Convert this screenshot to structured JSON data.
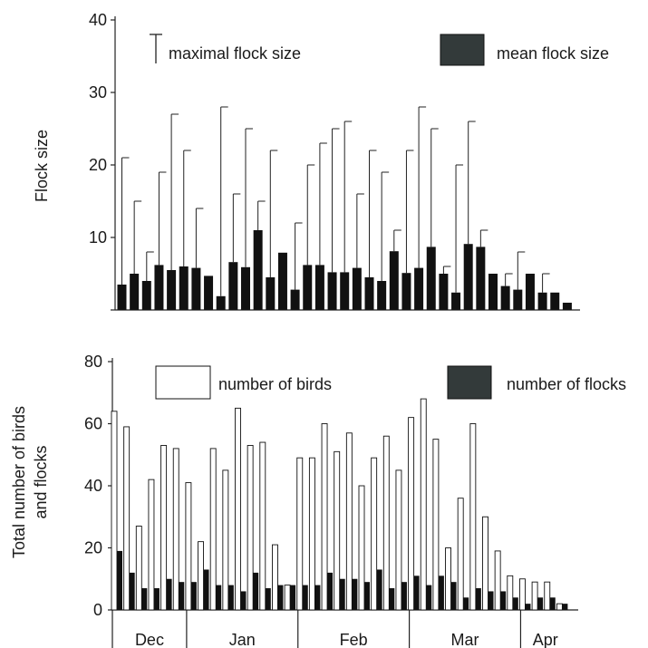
{
  "colors": {
    "mean_bar": "#111111",
    "flocks_bar": "#111111",
    "legend_dark": "#333a3a",
    "birds_bar_fill": "#ffffff",
    "axis": "#222222"
  },
  "chart_data": [
    {
      "type": "bar",
      "ylabel": "Flock size",
      "ylim": [
        0,
        40
      ],
      "yticks": [
        0,
        10,
        20,
        30,
        40
      ],
      "ytick_labels": [
        "",
        "10",
        "20",
        "30",
        "40"
      ],
      "legend": {
        "placement": "top",
        "entries": [
          "maximal flock size",
          "mean flock size"
        ]
      },
      "series": [
        {
          "name": "mean flock size",
          "values": [
            3.5,
            5,
            4,
            6.2,
            5.5,
            6,
            5.8,
            4.7,
            1.9,
            6.6,
            5.9,
            11,
            4.5,
            7.9,
            2.8,
            6.2,
            6.2,
            5.2,
            5.2,
            5.8,
            4.5,
            4,
            8.1,
            5.1,
            5.8,
            8.7,
            5,
            2.4,
            9.1,
            8.7,
            5,
            3.3,
            2.8,
            5,
            2.4,
            2.4,
            1
          ]
        },
        {
          "name": "maximal flock size",
          "values": [
            21,
            15,
            8,
            19,
            27,
            22,
            14,
            4,
            28,
            16,
            25,
            15,
            22,
            7,
            12,
            20,
            23,
            25,
            26,
            16,
            22,
            19,
            11,
            22,
            28,
            25,
            6,
            20,
            26,
            11,
            5,
            5,
            8,
            5,
            5,
            null,
            null
          ]
        }
      ]
    },
    {
      "type": "bar",
      "ylabel": "Total number of birds and flocks",
      "ylabel_lines": [
        "Total number of birds",
        "and flocks"
      ],
      "ylim": [
        0,
        80
      ],
      "yticks": [
        0,
        20,
        40,
        60,
        80
      ],
      "ytick_labels": [
        "0",
        "20",
        "40",
        "60",
        "80"
      ],
      "legend": {
        "placement": "top",
        "entries": [
          "number of birds",
          "number of flocks"
        ]
      },
      "months": [
        {
          "label": "Dec",
          "start": 0,
          "end": 6
        },
        {
          "label": "Jan",
          "start": 6,
          "end": 15
        },
        {
          "label": "Feb",
          "start": 15,
          "end": 24
        },
        {
          "label": "Mar",
          "start": 24,
          "end": 33
        },
        {
          "label": "Apr",
          "start": 33,
          "end": 37
        }
      ],
      "series": [
        {
          "name": "number of birds",
          "values": [
            64,
            59,
            27,
            42,
            53,
            52,
            41,
            22,
            52,
            45,
            65,
            53,
            54,
            21,
            8,
            49,
            49,
            60,
            51,
            57,
            40,
            49,
            56,
            45,
            62,
            68,
            55,
            20,
            36,
            60,
            30,
            19,
            11,
            10,
            9,
            9,
            2
          ]
        },
        {
          "name": "number of flocks",
          "values": [
            19,
            12,
            7,
            7,
            10,
            9,
            9,
            13,
            8,
            8,
            6,
            12,
            7,
            8,
            8,
            8,
            8,
            12,
            10,
            10,
            9,
            13,
            7,
            9,
            11,
            8,
            11,
            9,
            4,
            7,
            6,
            6,
            4,
            2,
            4,
            4,
            2
          ]
        }
      ]
    }
  ]
}
